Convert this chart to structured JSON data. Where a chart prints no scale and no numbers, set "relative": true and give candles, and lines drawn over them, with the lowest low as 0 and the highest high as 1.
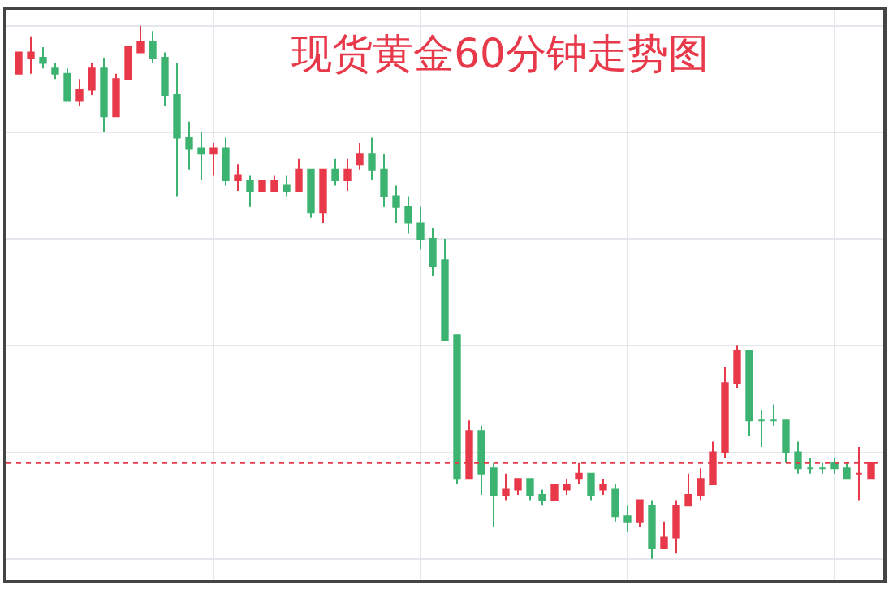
{
  "chart_data": {
    "type": "candlestick",
    "title": "现货黄金60分钟走势图",
    "relative": true,
    "grid": true,
    "legend": false,
    "categories": [
      null,
      null,
      null,
      null,
      null,
      null,
      null,
      null,
      null,
      null,
      null,
      null,
      null,
      null,
      null,
      null,
      null,
      null,
      null,
      null,
      null,
      null,
      null,
      null,
      null,
      null,
      null,
      null,
      null,
      null,
      null,
      null,
      null,
      null,
      null,
      null,
      null,
      null,
      null,
      null,
      null,
      null,
      null,
      null,
      null,
      null,
      null,
      null,
      null,
      null,
      null,
      null,
      null,
      null,
      null,
      null,
      null,
      null,
      null,
      null,
      null,
      null,
      null,
      null,
      null,
      null,
      null,
      null,
      null,
      null,
      null
    ],
    "ohlc": [
      [
        0.91,
        0.95,
        0.91,
        0.95
      ],
      [
        0.94,
        0.98,
        0.91,
        0.95
      ],
      [
        0.94,
        0.96,
        0.92,
        0.93
      ],
      [
        0.92,
        0.93,
        0.9,
        0.91
      ],
      [
        0.91,
        0.92,
        0.86,
        0.86
      ],
      [
        0.86,
        0.9,
        0.85,
        0.88
      ],
      [
        0.88,
        0.93,
        0.87,
        0.92
      ],
      [
        0.92,
        0.94,
        0.8,
        0.83
      ],
      [
        0.83,
        0.91,
        0.83,
        0.9
      ],
      [
        0.9,
        0.96,
        0.9,
        0.96
      ],
      [
        0.95,
        1.0,
        0.95,
        0.97
      ],
      [
        0.97,
        0.99,
        0.93,
        0.94
      ],
      [
        0.94,
        0.95,
        0.85,
        0.87
      ],
      [
        0.87,
        0.93,
        0.68,
        0.79
      ],
      [
        0.79,
        0.82,
        0.73,
        0.77
      ],
      [
        0.77,
        0.8,
        0.71,
        0.76
      ],
      [
        0.76,
        0.78,
        0.72,
        0.77
      ],
      [
        0.77,
        0.79,
        0.7,
        0.71
      ],
      [
        0.71,
        0.74,
        0.69,
        0.72
      ],
      [
        0.71,
        0.72,
        0.66,
        0.69
      ],
      [
        0.69,
        0.71,
        0.69,
        0.71
      ],
      [
        0.69,
        0.72,
        0.69,
        0.71
      ],
      [
        0.7,
        0.72,
        0.68,
        0.69
      ],
      [
        0.69,
        0.75,
        0.69,
        0.73
      ],
      [
        0.73,
        0.73,
        0.64,
        0.65
      ],
      [
        0.65,
        0.73,
        0.63,
        0.73
      ],
      [
        0.73,
        0.75,
        0.7,
        0.71
      ],
      [
        0.71,
        0.75,
        0.69,
        0.73
      ],
      [
        0.74,
        0.78,
        0.73,
        0.76
      ],
      [
        0.76,
        0.79,
        0.71,
        0.73
      ],
      [
        0.73,
        0.76,
        0.66,
        0.68
      ],
      [
        0.68,
        0.7,
        0.63,
        0.66
      ],
      [
        0.66,
        0.68,
        0.61,
        0.63
      ],
      [
        0.63,
        0.66,
        0.58,
        0.6
      ],
      [
        0.6,
        0.62,
        0.53,
        0.55
      ],
      [
        0.56,
        0.6,
        0.41,
        0.41
      ],
      [
        0.42,
        0.42,
        0.14,
        0.15
      ],
      [
        0.15,
        0.26,
        0.15,
        0.24
      ],
      [
        0.24,
        0.25,
        0.12,
        0.16
      ],
      [
        0.17,
        0.18,
        0.06,
        0.12
      ],
      [
        0.12,
        0.16,
        0.11,
        0.13
      ],
      [
        0.13,
        0.15,
        0.12,
        0.15
      ],
      [
        0.15,
        0.15,
        0.11,
        0.12
      ],
      [
        0.12,
        0.13,
        0.1,
        0.11
      ],
      [
        0.11,
        0.14,
        0.11,
        0.14
      ],
      [
        0.13,
        0.15,
        0.12,
        0.14
      ],
      [
        0.15,
        0.18,
        0.14,
        0.16
      ],
      [
        0.16,
        0.16,
        0.11,
        0.12
      ],
      [
        0.13,
        0.15,
        0.12,
        0.14
      ],
      [
        0.13,
        0.14,
        0.07,
        0.08
      ],
      [
        0.08,
        0.1,
        0.05,
        0.07
      ],
      [
        0.07,
        0.11,
        0.06,
        0.11
      ],
      [
        0.1,
        0.11,
        0.0,
        0.02
      ],
      [
        0.02,
        0.07,
        0.02,
        0.04
      ],
      [
        0.04,
        0.11,
        0.01,
        0.1
      ],
      [
        0.1,
        0.16,
        0.1,
        0.12
      ],
      [
        0.12,
        0.17,
        0.11,
        0.15
      ],
      [
        0.14,
        0.22,
        0.14,
        0.2
      ],
      [
        0.2,
        0.36,
        0.19,
        0.33
      ],
      [
        0.33,
        0.4,
        0.32,
        0.39
      ],
      [
        0.39,
        0.39,
        0.23,
        0.26
      ],
      [
        0.26,
        0.28,
        0.21,
        0.26
      ],
      [
        0.26,
        0.29,
        0.25,
        0.26
      ],
      [
        0.26,
        0.26,
        0.18,
        0.2
      ],
      [
        0.2,
        0.22,
        0.16,
        0.17
      ],
      [
        0.17,
        0.19,
        0.16,
        0.17
      ],
      [
        0.17,
        0.18,
        0.16,
        0.17
      ],
      [
        0.18,
        0.19,
        0.16,
        0.17
      ],
      [
        0.17,
        0.18,
        0.15,
        0.15
      ],
      [
        0.16,
        0.21,
        0.11,
        0.16
      ],
      [
        0.15,
        0.18,
        0.15,
        0.18
      ]
    ],
    "ref_lines": [
      {
        "axis": "y",
        "value": 0.18,
        "color": "#e8394a",
        "line_style": "dotted"
      }
    ]
  }
}
